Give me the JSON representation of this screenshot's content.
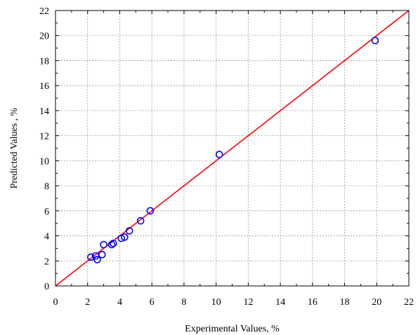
{
  "chart_data": {
    "type": "scatter",
    "xlabel": "Experimental  Values, %",
    "ylabel": "Predicted Values  , %",
    "xlim": [
      0,
      22
    ],
    "ylim": [
      0,
      22
    ],
    "xticks": [
      "0",
      "2",
      "4",
      "6",
      "8",
      "10",
      "12",
      "14",
      "16",
      "18",
      "20",
      "22"
    ],
    "yticks": [
      "0",
      "2",
      "4",
      "6",
      "8",
      "10",
      "12",
      "14",
      "16",
      "18",
      "20",
      "22"
    ],
    "grid": true,
    "fit_line": {
      "x": [
        0,
        22
      ],
      "y": [
        0,
        22
      ],
      "color": "#ff0000"
    },
    "point_color": "#0000ff",
    "points": [
      {
        "x": 2.2,
        "y": 2.3
      },
      {
        "x": 2.5,
        "y": 2.4
      },
      {
        "x": 2.6,
        "y": 2.1
      },
      {
        "x": 2.9,
        "y": 2.5
      },
      {
        "x": 3.0,
        "y": 3.3
      },
      {
        "x": 3.5,
        "y": 3.3
      },
      {
        "x": 3.6,
        "y": 3.4
      },
      {
        "x": 4.1,
        "y": 3.8
      },
      {
        "x": 4.3,
        "y": 3.9
      },
      {
        "x": 4.6,
        "y": 4.4
      },
      {
        "x": 5.3,
        "y": 5.2
      },
      {
        "x": 5.9,
        "y": 6.0
      },
      {
        "x": 10.2,
        "y": 10.5
      },
      {
        "x": 19.9,
        "y": 19.6
      }
    ]
  }
}
